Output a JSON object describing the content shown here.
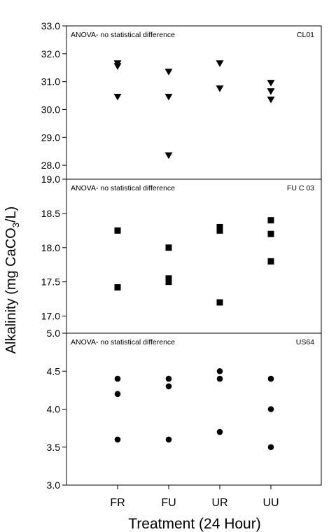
{
  "figure": {
    "ylabel_main": "Alkalinity (mg CaCO",
    "ylabel_sub": "3",
    "ylabel_tail": "/L)",
    "xlabel": "Treatment (24 Hour)"
  },
  "chart_data": [
    {
      "type": "scatter",
      "site": "CL01",
      "annotation": "ANOVA- no statistical difference",
      "marker": "triangle-down",
      "categories": [
        "FR",
        "FU",
        "UR",
        "UU"
      ],
      "ylim": [
        27.5,
        33.0
      ],
      "yticks": [
        "28.0",
        "29.0",
        "30.0",
        "31.0",
        "32.0",
        "33.0"
      ],
      "points": [
        {
          "x": "FR",
          "y": 31.65
        },
        {
          "x": "FR",
          "y": 31.55
        },
        {
          "x": "FR",
          "y": 30.45
        },
        {
          "x": "FU",
          "y": 31.35
        },
        {
          "x": "FU",
          "y": 30.45
        },
        {
          "x": "FU",
          "y": 28.35
        },
        {
          "x": "UR",
          "y": 31.65
        },
        {
          "x": "UR",
          "y": 30.75
        },
        {
          "x": "UU",
          "y": 30.95
        },
        {
          "x": "UU",
          "y": 30.65
        },
        {
          "x": "UU",
          "y": 30.35
        }
      ]
    },
    {
      "type": "scatter",
      "site": "FU C 03",
      "annotation": "ANOVA- no statistical difference",
      "marker": "square",
      "categories": [
        "FR",
        "FU",
        "UR",
        "UU"
      ],
      "ylim": [
        16.75,
        19.0
      ],
      "yticks": [
        "17.0",
        "17.5",
        "18.0",
        "18.5",
        "19.0"
      ],
      "points": [
        {
          "x": "FR",
          "y": 18.25
        },
        {
          "x": "FR",
          "y": 17.42
        },
        {
          "x": "FU",
          "y": 18.0
        },
        {
          "x": "FU",
          "y": 17.55
        },
        {
          "x": "FU",
          "y": 17.5
        },
        {
          "x": "UR",
          "y": 18.3
        },
        {
          "x": "UR",
          "y": 18.25
        },
        {
          "x": "UR",
          "y": 17.2
        },
        {
          "x": "UU",
          "y": 18.4
        },
        {
          "x": "UU",
          "y": 18.2
        },
        {
          "x": "UU",
          "y": 17.8
        }
      ]
    },
    {
      "type": "scatter",
      "site": "US64",
      "annotation": "ANOVA- no statistical difference",
      "marker": "circle",
      "categories": [
        "FR",
        "FU",
        "UR",
        "UU"
      ],
      "ylim": [
        3.0,
        5.0
      ],
      "yticks": [
        "3.0",
        "3.5",
        "4.0",
        "4.5",
        "5.0"
      ],
      "points": [
        {
          "x": "FR",
          "y": 4.4
        },
        {
          "x": "FR",
          "y": 4.2
        },
        {
          "x": "FR",
          "y": 3.6
        },
        {
          "x": "FU",
          "y": 4.4
        },
        {
          "x": "FU",
          "y": 4.3
        },
        {
          "x": "FU",
          "y": 3.6
        },
        {
          "x": "UR",
          "y": 4.5
        },
        {
          "x": "UR",
          "y": 4.4
        },
        {
          "x": "UR",
          "y": 3.7
        },
        {
          "x": "UU",
          "y": 4.4
        },
        {
          "x": "UU",
          "y": 4.0
        },
        {
          "x": "UU",
          "y": 3.5
        }
      ]
    }
  ]
}
